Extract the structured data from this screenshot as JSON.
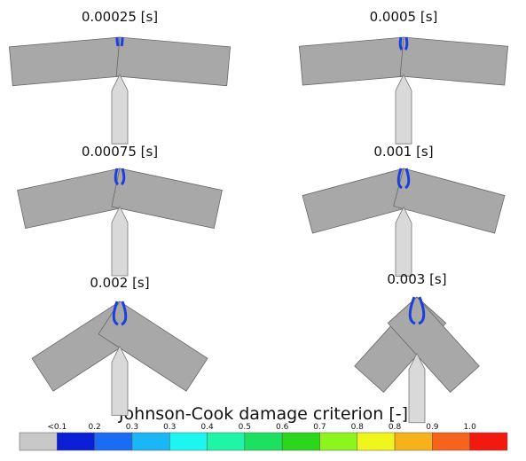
{
  "panels": [
    {
      "label": "0.00025 [s]"
    },
    {
      "label": "0.0005 [s]"
    },
    {
      "label": "0.00075 [s]"
    },
    {
      "label": "0.001 [s]"
    },
    {
      "label": "0.002 [s]"
    },
    {
      "label": "0.003 [s]"
    }
  ],
  "legend": {
    "title": "Johnson-Cook damage criterion [-]",
    "labels": [
      "<0.1",
      "0.2",
      "0.3",
      "0.3",
      "0.4",
      "0.5",
      "0.6",
      "0.7",
      "0.8",
      "0.8",
      "0.9",
      "1.0"
    ],
    "colors": [
      "#c8c8c8",
      "#0a1fd6",
      "#1a6cf2",
      "#1bb6f5",
      "#1df5f0",
      "#1ef5a6",
      "#1ee060",
      "#2bd61c",
      "#8ef51c",
      "#f0f51c",
      "#f7b21a",
      "#f7631a",
      "#f21a0e"
    ]
  }
}
